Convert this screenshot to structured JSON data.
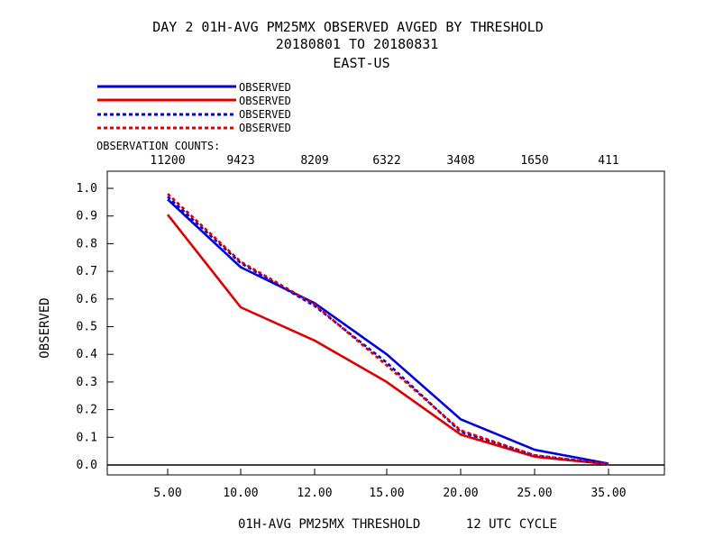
{
  "title": {
    "line1": "DAY 2   01H-AVG PM25MX OBSERVED   AVGED BY THRESHOLD",
    "line2": "20180801 TO 20180831",
    "line3": "EAST-US"
  },
  "legend_labels": [
    "OBSERVED",
    "OBSERVED",
    "OBSERVED",
    "OBSERVED"
  ],
  "counts_label": "OBSERVATION COUNTS:",
  "counts": [
    "11200",
    "9423",
    "8209",
    "6322",
    "3408",
    "1650",
    "411"
  ],
  "ylabel": "OBSERVED",
  "xlabel": "01H-AVG PM25MX THRESHOLD      12 UTC CYCLE",
  "chart_data": {
    "type": "line",
    "categories": [
      "5.00",
      "10.00",
      "12.00",
      "15.00",
      "20.00",
      "25.00",
      "35.00"
    ],
    "ylim": [
      0,
      1.0
    ],
    "yticks": [
      "0.0",
      "0.1",
      "0.2",
      "0.3",
      "0.4",
      "0.5",
      "0.6",
      "0.7",
      "0.8",
      "0.9",
      "1.0"
    ],
    "series": [
      {
        "name": "OBSERVED",
        "color": "#0000dd",
        "dash": "solid",
        "values": [
          0.96,
          0.715,
          0.585,
          0.4,
          0.165,
          0.055,
          0.005
        ]
      },
      {
        "name": "OBSERVED",
        "color": "#dd0000",
        "dash": "solid",
        "values": [
          0.905,
          0.57,
          0.45,
          0.3,
          0.11,
          0.03,
          0.003
        ]
      },
      {
        "name": "OBSERVED",
        "color": "#0000dd",
        "dash": "dashed",
        "values": [
          0.97,
          0.73,
          0.575,
          0.37,
          0.12,
          0.035,
          0.003
        ]
      },
      {
        "name": "OBSERVED",
        "color": "#dd0000",
        "dash": "dashed",
        "values": [
          0.98,
          0.735,
          0.58,
          0.36,
          0.125,
          0.035,
          0.003
        ]
      }
    ],
    "grid": false,
    "legend_position": "top-left"
  }
}
